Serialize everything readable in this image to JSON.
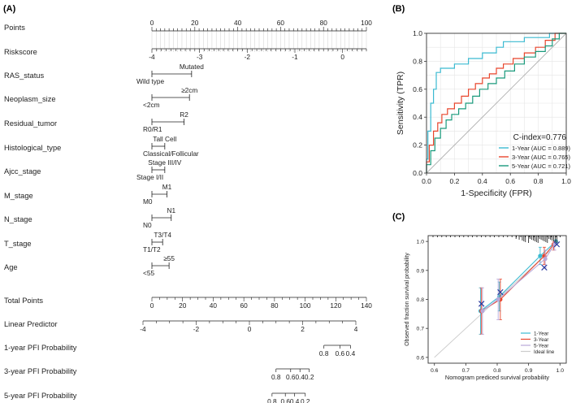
{
  "panels": {
    "a": "(A)",
    "b": "(B)",
    "c": "(C)"
  },
  "chart_data": [
    {
      "type": "nomogram",
      "rows": [
        {
          "label": "Points",
          "kind": "axis",
          "min": 0,
          "max": 100,
          "major": 20,
          "minor": 2,
          "ticks": [
            "0",
            "20",
            "40",
            "60",
            "80",
            "100"
          ]
        },
        {
          "label": "Riskscore",
          "kind": "axis",
          "min": -4,
          "max": 0.5,
          "major": 1,
          "minor": 0.1,
          "ticks": [
            "-4",
            "-3",
            "-2",
            "-1",
            "0"
          ]
        },
        {
          "label": "RAS_status",
          "kind": "factor",
          "low": "Wild type",
          "high": "Mutated",
          "points": 18.5
        },
        {
          "label": "Neoplasm_size",
          "kind": "factor",
          "low": "<2cm",
          "high": "≥2cm",
          "points": 17.5
        },
        {
          "label": "Residual_tumor",
          "kind": "factor",
          "low": "R0/R1",
          "high": "R2",
          "points": 15
        },
        {
          "label": "Histological_type",
          "kind": "factor",
          "low": "Classical/Follicular",
          "high": "Tall Cell",
          "points": 6
        },
        {
          "label": "Ajcc_stage",
          "kind": "factor",
          "low": "Stage I/II",
          "high": "Stage III/IV",
          "points": 6
        },
        {
          "label": "M_stage",
          "kind": "factor",
          "low": "M0",
          "high": "M1",
          "points": 7
        },
        {
          "label": "N_stage",
          "kind": "factor",
          "low": "N0",
          "high": "N1",
          "points": 9
        },
        {
          "label": "T_stage",
          "kind": "factor",
          "low": "T1/T2",
          "high": "T3/T4",
          "points": 5
        },
        {
          "label": "Age",
          "kind": "factor",
          "low": "<55",
          "high": "≥55",
          "points": 8
        },
        {
          "label": "Total Points",
          "kind": "axis",
          "min": 0,
          "max": 140,
          "major": 20,
          "minor": 5,
          "ticks": [
            "0",
            "20",
            "40",
            "60",
            "80",
            "100",
            "120",
            "140"
          ]
        },
        {
          "label": "Linear Predictor",
          "kind": "axis",
          "min": -4,
          "max": 4,
          "major": 2,
          "minor": 0.5,
          "ticks": [
            "-4",
            "-2",
            "0",
            "2",
            "4"
          ]
        },
        {
          "label": "1-year PFI Probability",
          "kind": "prob",
          "ticks": [
            {
              "label": "0.8",
              "lp": 2.8
            },
            {
              "label": "0.6",
              "lp": 3.4
            },
            {
              "label": "0.4",
              "lp": 3.8
            }
          ]
        },
        {
          "label": "3-year PFI Probability",
          "kind": "prob",
          "ticks": [
            {
              "label": "0.8",
              "lp": 1.0
            },
            {
              "label": "0.6",
              "lp": 1.55
            },
            {
              "label": "0.4",
              "lp": 1.9
            },
            {
              "label": "0.2",
              "lp": 2.25
            }
          ]
        },
        {
          "label": "5-year PFI Probability",
          "kind": "prob",
          "ticks": [
            {
              "label": "0.8",
              "lp": 0.85
            },
            {
              "label": "0.6",
              "lp": 1.35
            },
            {
              "label": "0.4",
              "lp": 1.7
            },
            {
              "label": "0.2",
              "lp": 2.1
            }
          ]
        }
      ]
    },
    {
      "type": "line",
      "xlabel": "1-Specificity (FPR)",
      "ylabel": "Sensitivity (TPR)",
      "xlim": [
        0,
        1
      ],
      "ylim": [
        0,
        1
      ],
      "xticks": [
        "0.0",
        "0.2",
        "0.4",
        "0.6",
        "0.8",
        "1.0"
      ],
      "yticks": [
        "0.0",
        "0.2",
        "0.4",
        "0.6",
        "0.8",
        "1.0"
      ],
      "grid": true,
      "legend": "bottom-right",
      "annotation": "C-index=0.776",
      "series": [
        {
          "name": "1-Year (AUC = 0.889)",
          "color": "#3bbad1",
          "x": [
            0,
            0,
            0.01,
            0.01,
            0.03,
            0.03,
            0.05,
            0.05,
            0.07,
            0.07,
            0.1,
            0.1,
            0.2,
            0.2,
            0.3,
            0.3,
            0.4,
            0.4,
            0.5,
            0.5,
            0.55,
            0.55,
            0.7,
            0.7,
            0.88,
            0.88,
            1
          ],
          "y": [
            0,
            0.1,
            0.1,
            0.3,
            0.3,
            0.5,
            0.5,
            0.6,
            0.6,
            0.72,
            0.72,
            0.75,
            0.75,
            0.78,
            0.78,
            0.82,
            0.82,
            0.86,
            0.86,
            0.9,
            0.9,
            0.94,
            0.94,
            0.97,
            0.97,
            1,
            1
          ]
        },
        {
          "name": "3-Year (AUC = 0.765)",
          "color": "#e8452c",
          "x": [
            0,
            0,
            0.02,
            0.02,
            0.05,
            0.05,
            0.08,
            0.08,
            0.11,
            0.11,
            0.15,
            0.15,
            0.2,
            0.2,
            0.25,
            0.25,
            0.3,
            0.3,
            0.35,
            0.35,
            0.4,
            0.4,
            0.45,
            0.45,
            0.5,
            0.5,
            0.55,
            0.55,
            0.62,
            0.62,
            0.7,
            0.7,
            0.78,
            0.78,
            0.85,
            0.85,
            0.92,
            0.92,
            1
          ],
          "y": [
            0,
            0.08,
            0.08,
            0.2,
            0.2,
            0.3,
            0.3,
            0.36,
            0.36,
            0.42,
            0.42,
            0.46,
            0.46,
            0.5,
            0.5,
            0.55,
            0.55,
            0.6,
            0.6,
            0.64,
            0.64,
            0.68,
            0.68,
            0.71,
            0.71,
            0.75,
            0.75,
            0.78,
            0.78,
            0.82,
            0.82,
            0.86,
            0.86,
            0.9,
            0.9,
            0.95,
            0.95,
            1,
            1
          ]
        },
        {
          "name": "5-Year (AUC = 0.721)",
          "color": "#1a9a7c",
          "x": [
            0,
            0,
            0.03,
            0.03,
            0.06,
            0.06,
            0.1,
            0.1,
            0.14,
            0.14,
            0.18,
            0.18,
            0.23,
            0.23,
            0.28,
            0.28,
            0.33,
            0.33,
            0.38,
            0.38,
            0.44,
            0.44,
            0.5,
            0.5,
            0.56,
            0.56,
            0.63,
            0.63,
            0.7,
            0.7,
            0.78,
            0.78,
            0.85,
            0.85,
            0.9,
            0.9,
            0.95,
            0.95,
            1
          ],
          "y": [
            0,
            0.06,
            0.06,
            0.16,
            0.16,
            0.25,
            0.25,
            0.32,
            0.32,
            0.38,
            0.38,
            0.42,
            0.42,
            0.46,
            0.46,
            0.5,
            0.5,
            0.55,
            0.55,
            0.6,
            0.6,
            0.64,
            0.64,
            0.68,
            0.68,
            0.73,
            0.73,
            0.78,
            0.78,
            0.83,
            0.83,
            0.87,
            0.87,
            0.91,
            0.91,
            0.96,
            0.96,
            1,
            1
          ]
        }
      ],
      "reference_line": {
        "x": [
          0,
          1
        ],
        "y": [
          0,
          1
        ],
        "color": "#b0b0b0"
      }
    },
    {
      "type": "scatter",
      "xlabel": "Nomogram prediced survival probability",
      "ylabel": "Observed fraction survival probability",
      "xlim": [
        0.58,
        1.02
      ],
      "ylim": [
        0.58,
        1.02
      ],
      "xticks": [
        "0.6",
        "0.7",
        "0.8",
        "0.9",
        "1.0"
      ],
      "yticks": [
        "0.6",
        "0.7",
        "0.8",
        "0.9",
        "1.0"
      ],
      "legend": "bottom-right",
      "series": [
        {
          "name": "1-Year",
          "color": "#3bbad1",
          "x": [
            0.75,
            0.81,
            0.94,
            0.99
          ],
          "y": [
            0.76,
            0.81,
            0.95,
            1.0
          ],
          "lower": [
            0.68,
            0.76,
            0.92,
            0.99
          ],
          "upper": [
            0.84,
            0.86,
            0.98,
            1.0
          ]
        },
        {
          "name": "3-Year",
          "color": "#e8452c",
          "x": [
            0.75,
            0.81,
            0.95,
            0.98
          ],
          "y": [
            0.76,
            0.8,
            0.95,
            0.99
          ],
          "lower": [
            0.68,
            0.73,
            0.92,
            0.97
          ],
          "upper": [
            0.84,
            0.87,
            0.98,
            1.0
          ]
        },
        {
          "name": "5-Year",
          "color": "#b9a8d8",
          "x": [
            0.75,
            0.8,
            0.95,
            0.98
          ],
          "y": [
            0.76,
            0.8,
            0.94,
            0.99
          ],
          "lower": [
            0.68,
            0.73,
            0.91,
            0.97
          ],
          "upper": [
            0.84,
            0.87,
            0.97,
            1.0
          ]
        },
        {
          "name": "Ideal line",
          "color": "#cccccc",
          "x": [
            0.6,
            1.0
          ],
          "y": [
            0.6,
            1.0
          ]
        }
      ],
      "markers": {
        "color": "#2b3a9e",
        "x": [
          0.75,
          0.81,
          0.95,
          0.99
        ],
        "y": [
          0.785,
          0.825,
          0.91,
          0.99
        ]
      },
      "rug": {
        "color": "#111111",
        "x": [
          0.86,
          0.87,
          0.88,
          0.885,
          0.89,
          0.9,
          0.905,
          0.91,
          0.915,
          0.92,
          0.925,
          0.93,
          0.935,
          0.94,
          0.945,
          0.95,
          0.955,
          0.96,
          0.965,
          0.97,
          0.975,
          0.98,
          0.985,
          0.99
        ]
      }
    }
  ]
}
